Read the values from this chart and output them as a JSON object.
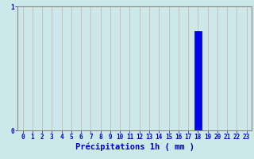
{
  "hours": [
    0,
    1,
    2,
    3,
    4,
    5,
    6,
    7,
    8,
    9,
    10,
    11,
    12,
    13,
    14,
    15,
    16,
    17,
    18,
    19,
    20,
    21,
    22,
    23
  ],
  "values": [
    0,
    0,
    0,
    0,
    0,
    0,
    0,
    0,
    0,
    0,
    0,
    0,
    0,
    0,
    0,
    0,
    0,
    0,
    0.8,
    0,
    0,
    0,
    0,
    0
  ],
  "bar_color": "#0000ee",
  "bar_edge_color": "#0000cc",
  "background_color": "#cce8e8",
  "grid_color": "#c8b8b8",
  "axis_color": "#888888",
  "xlabel": "Précipitations 1h ( mm )",
  "xlabel_color": "#0000cc",
  "tick_color": "#0000cc",
  "ylim": [
    0,
    1.0
  ],
  "xlim": [
    -0.5,
    23.5
  ],
  "yticks": [
    0,
    1
  ],
  "tick_fontsize": 5.5,
  "xlabel_fontsize": 7.5
}
